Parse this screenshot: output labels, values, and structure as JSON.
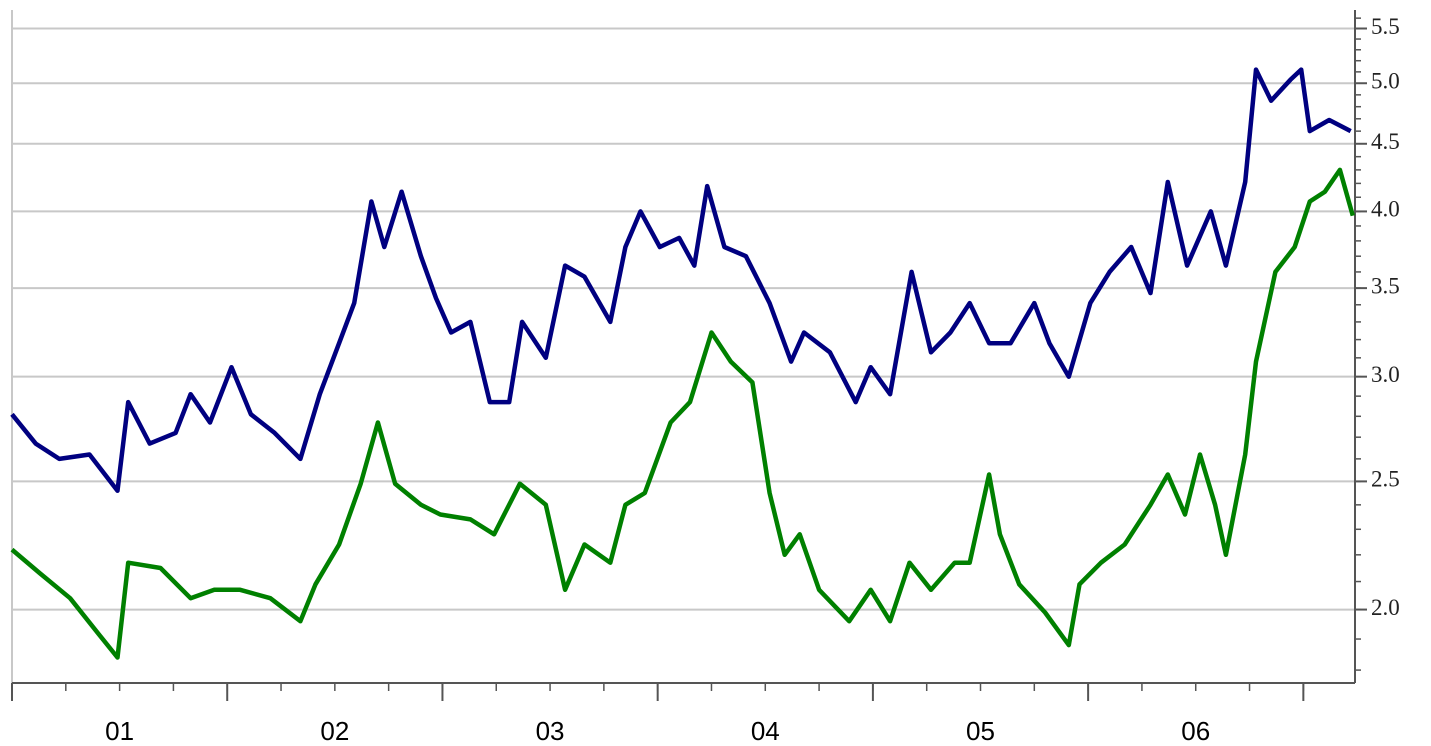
{
  "chart_data": {
    "type": "line",
    "xlim": [
      0,
      6.24
    ],
    "xticks": [
      {
        "value": 0.5,
        "label": "01"
      },
      {
        "value": 1.5,
        "label": "02"
      },
      {
        "value": 2.5,
        "label": "03"
      },
      {
        "value": 3.5,
        "label": "04"
      },
      {
        "value": 4.5,
        "label": "05"
      },
      {
        "value": 5.5,
        "label": "06"
      }
    ],
    "x_major_ticks": [
      0,
      1,
      2,
      3,
      4,
      5,
      6
    ],
    "ylim": [
      1.76,
      5.68
    ],
    "y_scale": "log",
    "yaxis_side": "right",
    "yticks": [
      {
        "value": 2,
        "label": "2.0"
      },
      {
        "value": 2.5,
        "label": "2.5"
      },
      {
        "value": 3,
        "label": "3.0"
      },
      {
        "value": 3.5,
        "label": "3.5"
      },
      {
        "value": 4,
        "label": "4.0"
      },
      {
        "value": 4.5,
        "label": "4.5"
      },
      {
        "value": 5,
        "label": "5.0"
      },
      {
        "value": 5.5,
        "label": "5.5"
      }
    ],
    "grid": true,
    "series": [
      {
        "color": "#000080",
        "x": [
          0,
          0.11,
          0.22,
          0.36,
          0.49,
          0.54,
          0.64,
          0.76,
          0.83,
          0.92,
          1.02,
          1.11,
          1.22,
          1.34,
          1.43,
          1.52,
          1.59,
          1.67,
          1.73,
          1.81,
          1.9,
          1.97,
          2.04,
          2.13,
          2.22,
          2.31,
          2.37,
          2.48,
          2.57,
          2.66,
          2.78,
          2.85,
          2.92,
          3.01,
          3.1,
          3.17,
          3.23,
          3.31,
          3.41,
          3.52,
          3.62,
          3.68,
          3.8,
          3.92,
          3.99,
          4.08,
          4.18,
          4.27,
          4.36,
          4.45,
          4.54,
          4.64,
          4.75,
          4.82,
          4.91,
          5.01,
          5.1,
          5.2,
          5.29,
          5.37,
          5.46,
          5.57,
          5.64,
          5.73,
          5.78,
          5.85,
          5.94,
          5.99,
          6.03,
          6.12,
          6.22
        ],
        "values": [
          2.81,
          2.67,
          2.6,
          2.62,
          2.46,
          2.87,
          2.67,
          2.72,
          2.91,
          2.77,
          3.05,
          2.81,
          2.72,
          2.6,
          2.91,
          3.18,
          3.41,
          4.07,
          3.76,
          4.14,
          3.7,
          3.44,
          3.24,
          3.3,
          2.87,
          2.87,
          3.3,
          3.1,
          3.64,
          3.57,
          3.3,
          3.76,
          4.0,
          3.76,
          3.82,
          3.64,
          4.18,
          3.76,
          3.7,
          3.41,
          3.08,
          3.24,
          3.13,
          2.87,
          3.05,
          2.91,
          3.6,
          3.13,
          3.24,
          3.41,
          3.18,
          3.18,
          3.41,
          3.18,
          3.0,
          3.41,
          3.6,
          3.76,
          3.47,
          4.21,
          3.64,
          4.0,
          3.64,
          4.21,
          5.12,
          4.85,
          5.03,
          5.12,
          4.6,
          4.69,
          4.6
        ]
      },
      {
        "color": "#008000",
        "x": [
          0,
          0.13,
          0.27,
          0.41,
          0.49,
          0.54,
          0.69,
          0.83,
          0.94,
          1.06,
          1.2,
          1.34,
          1.41,
          1.52,
          1.62,
          1.7,
          1.78,
          1.9,
          1.99,
          2.13,
          2.24,
          2.36,
          2.48,
          2.57,
          2.66,
          2.78,
          2.85,
          2.94,
          3.06,
          3.15,
          3.25,
          3.34,
          3.44,
          3.52,
          3.59,
          3.66,
          3.75,
          3.89,
          3.99,
          4.08,
          4.17,
          4.27,
          4.38,
          4.45,
          4.54,
          4.59,
          4.68,
          4.8,
          4.91,
          4.96,
          5.06,
          5.17,
          5.29,
          5.37,
          5.45,
          5.52,
          5.59,
          5.64,
          5.73,
          5.78,
          5.87,
          5.96,
          6.03,
          6.1,
          6.17,
          6.23
        ],
        "values": [
          2.22,
          2.13,
          2.04,
          1.91,
          1.84,
          2.17,
          2.15,
          2.04,
          2.07,
          2.07,
          2.04,
          1.96,
          2.09,
          2.24,
          2.49,
          2.77,
          2.49,
          2.4,
          2.36,
          2.34,
          2.28,
          2.49,
          2.4,
          2.07,
          2.24,
          2.17,
          2.4,
          2.45,
          2.77,
          2.87,
          3.24,
          3.08,
          2.97,
          2.45,
          2.2,
          2.28,
          2.07,
          1.96,
          2.07,
          1.96,
          2.17,
          2.07,
          2.17,
          2.17,
          2.53,
          2.28,
          2.09,
          1.99,
          1.88,
          2.09,
          2.17,
          2.24,
          2.4,
          2.53,
          2.36,
          2.62,
          2.4,
          2.2,
          2.62,
          3.08,
          3.6,
          3.76,
          4.07,
          4.14,
          4.3,
          3.97
        ]
      }
    ]
  }
}
